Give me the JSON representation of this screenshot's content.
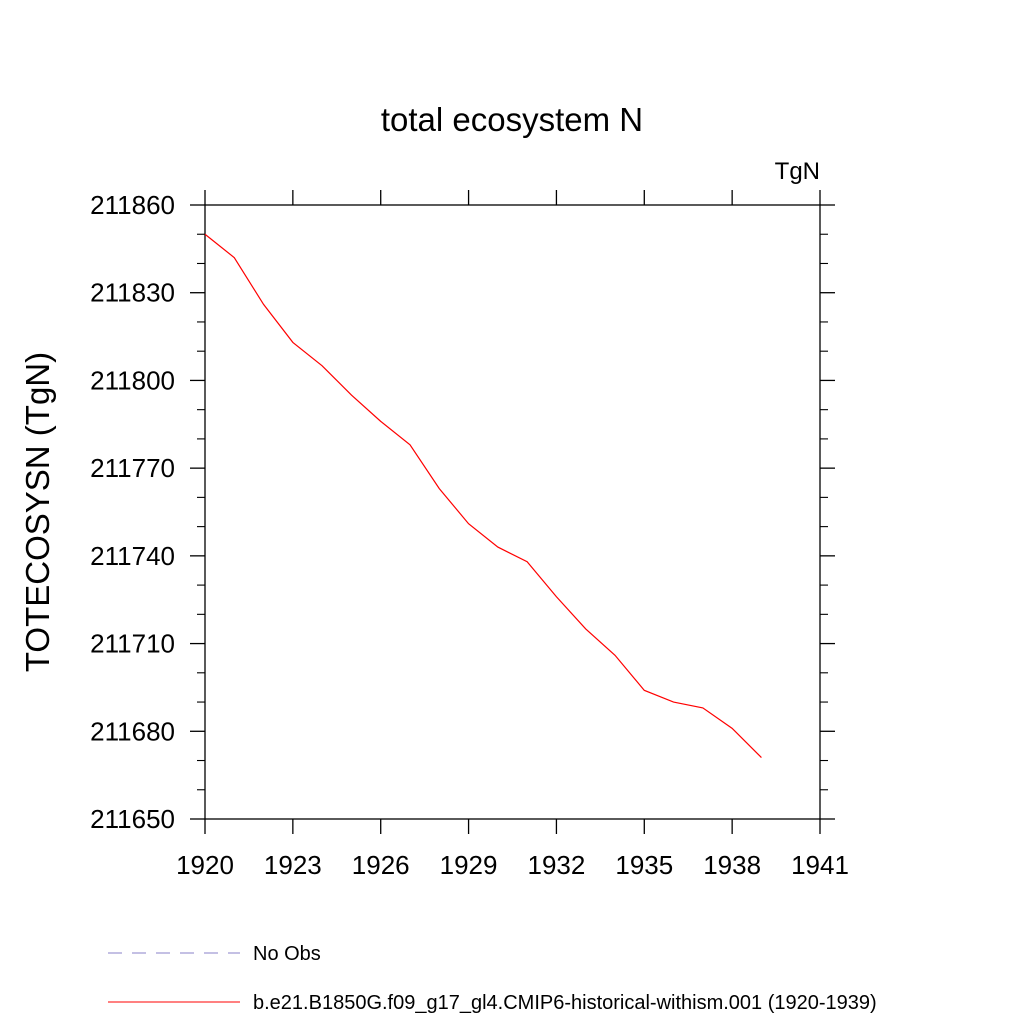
{
  "chart_data": {
    "type": "line",
    "title": "total ecosystem N",
    "units_label": "TgN",
    "xlabel": "",
    "ylabel": "TOTECOSYSN  (TgN)",
    "xlim": [
      1920,
      1941
    ],
    "ylim": [
      211650,
      211860
    ],
    "x_ticks": [
      "1920",
      "1923",
      "1926",
      "1929",
      "1932",
      "1935",
      "1938",
      "1941"
    ],
    "y_ticks": [
      "211650",
      "211680",
      "211710",
      "211740",
      "211770",
      "211800",
      "211830",
      "211860"
    ],
    "grid": false,
    "legend_position": "bottom",
    "series": [
      {
        "name": "No Obs",
        "color": "#8a80c8",
        "dash": "dashed",
        "x": [],
        "y": []
      },
      {
        "name": "b.e21.B1850G.f09_g17_gl4.CMIP6-historical-withism.001 (1920-1939)",
        "color": "#ff0000",
        "dash": "solid",
        "x": [
          1920,
          1921,
          1922,
          1923,
          1924,
          1925,
          1926,
          1927,
          1928,
          1929,
          1930,
          1931,
          1932,
          1933,
          1934,
          1935,
          1936,
          1937,
          1938,
          1939
        ],
        "y": [
          211850,
          211842,
          211826,
          211813,
          211805,
          211795,
          211786,
          211778,
          211763,
          211751,
          211743,
          211738,
          211726,
          211715,
          211706,
          211694,
          211690,
          211688,
          211681,
          211671
        ]
      }
    ]
  }
}
